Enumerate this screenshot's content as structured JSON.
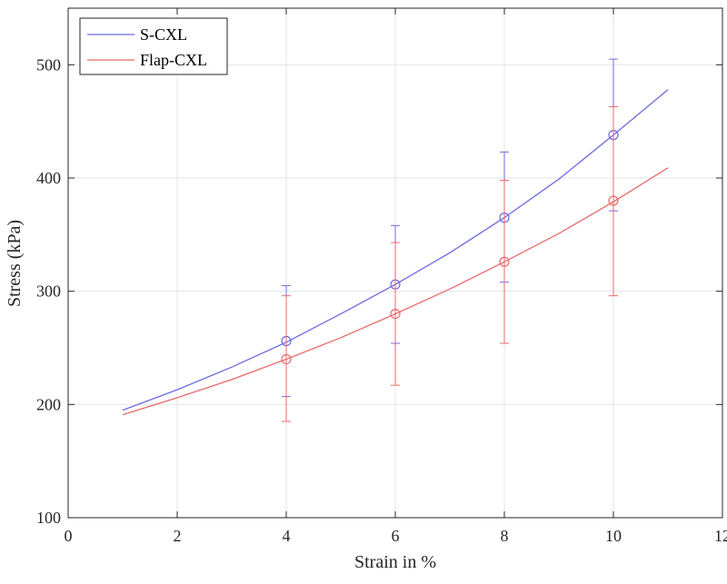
{
  "chart_data": {
    "type": "line",
    "xlabel": "Strain in %",
    "ylabel": "Stress (kPa)",
    "xlim": [
      0,
      12
    ],
    "ylim": [
      100,
      550
    ],
    "xticks": [
      0,
      2,
      4,
      6,
      8,
      10,
      12
    ],
    "yticks": [
      100,
      200,
      300,
      400,
      500
    ],
    "grid": true,
    "legend_position": "top-left",
    "series": [
      {
        "name": "S-CXL",
        "color": "#6b6be0",
        "curve": {
          "x": [
            1,
            2,
            3,
            4,
            5,
            6,
            7,
            8,
            9,
            10,
            11
          ],
          "y": [
            195,
            213,
            233,
            255,
            280,
            306,
            334,
            365,
            399,
            438,
            478
          ]
        },
        "points": [
          {
            "x": 4,
            "y": 256,
            "low": 207,
            "high": 305
          },
          {
            "x": 6,
            "y": 306,
            "low": 254,
            "high": 358
          },
          {
            "x": 8,
            "y": 365,
            "low": 308,
            "high": 423
          },
          {
            "x": 10,
            "y": 438,
            "low": 371,
            "high": 505
          }
        ]
      },
      {
        "name": "Flap-CXL",
        "color": "#e86a6a",
        "curve": {
          "x": [
            1,
            2,
            3,
            4,
            5,
            6,
            7,
            8,
            9,
            10,
            11
          ],
          "y": [
            191,
            206,
            222,
            240,
            259,
            280,
            302,
            326,
            351,
            379,
            409
          ]
        },
        "points": [
          {
            "x": 4,
            "y": 240,
            "low": 185,
            "high": 296
          },
          {
            "x": 6,
            "y": 280,
            "low": 217,
            "high": 343
          },
          {
            "x": 8,
            "y": 326,
            "low": 254,
            "high": 398
          },
          {
            "x": 10,
            "y": 380,
            "low": 296,
            "high": 463
          }
        ]
      }
    ]
  }
}
